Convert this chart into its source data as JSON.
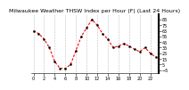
{
  "title": "Milwaukee Weather THSW Index per Hour (F) (Last 24 Hours)",
  "x_values": [
    0,
    1,
    2,
    3,
    4,
    5,
    6,
    7,
    8,
    9,
    10,
    11,
    12,
    13,
    14,
    15,
    16,
    17,
    18,
    19,
    20,
    21,
    22,
    23
  ],
  "y_values": [
    65,
    60,
    50,
    35,
    10,
    -2,
    -2,
    5,
    30,
    55,
    70,
    85,
    75,
    60,
    50,
    35,
    38,
    42,
    38,
    32,
    28,
    35,
    25,
    18
  ],
  "ylim": [
    -10,
    95
  ],
  "yticks": [
    -5,
    5,
    15,
    25,
    35,
    45,
    55,
    65,
    75,
    85
  ],
  "xlim": [
    -0.5,
    23.5
  ],
  "xtick_positions": [
    0,
    2,
    4,
    6,
    8,
    10,
    12,
    14,
    16,
    18,
    20,
    22
  ],
  "line_color": "#FF0000",
  "marker_color": "#000000",
  "bg_color": "#ffffff",
  "grid_color": "#888888",
  "title_fontsize": 4.5,
  "tick_fontsize": 3.5,
  "line_width": 0.8,
  "marker_size": 1.5
}
